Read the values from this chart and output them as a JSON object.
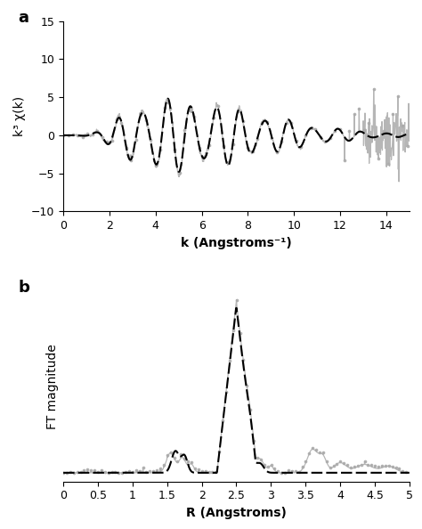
{
  "panel_a": {
    "title": "a",
    "xlabel": "k (Angstroms⁻¹)",
    "ylabel": "k³ χ(k)",
    "xlim": [
      0,
      15
    ],
    "ylim": [
      -10,
      15
    ],
    "yticks": [
      -10,
      -5,
      0,
      5,
      10,
      15
    ],
    "xticks": [
      0,
      2,
      4,
      6,
      8,
      10,
      12,
      14
    ]
  },
  "panel_b": {
    "title": "b",
    "xlabel": "R (Angstroms)",
    "ylabel": "FT magnitude",
    "xlim": [
      0,
      5
    ],
    "xticks": [
      0,
      0.5,
      1,
      1.5,
      2,
      2.5,
      3,
      3.5,
      4,
      4.5,
      5
    ]
  },
  "line_color": "#000000",
  "scatter_color": "#aaaaaa",
  "gray_line_color": "#aaaaaa",
  "background_color": "#ffffff"
}
